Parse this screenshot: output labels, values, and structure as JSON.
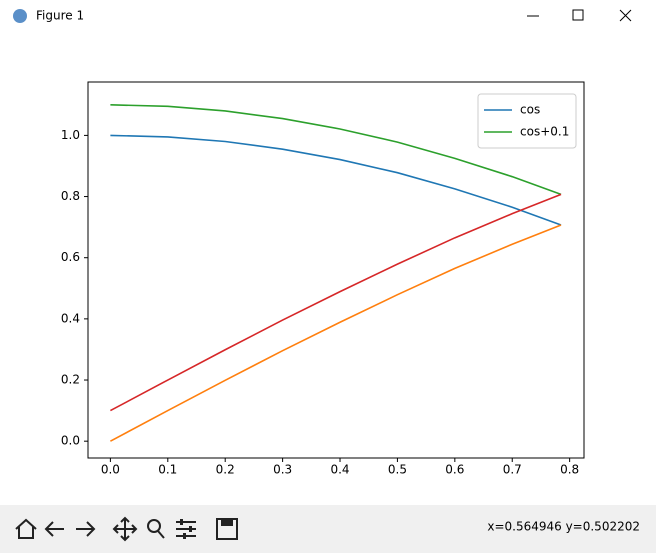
{
  "window": {
    "title": "Figure 1"
  },
  "chart_data": {
    "type": "line",
    "x": [
      0,
      0.1,
      0.2,
      0.3,
      0.4,
      0.5,
      0.6,
      0.7,
      0.785
    ],
    "series": [
      {
        "name": "cos",
        "color": "#1f77b4",
        "values": [
          1.0,
          0.995,
          0.98,
          0.955,
          0.921,
          0.878,
          0.825,
          0.765,
          0.707
        ]
      },
      {
        "name": "cos+0.1",
        "color": "#2ca02c",
        "values": [
          1.1,
          1.095,
          1.08,
          1.055,
          1.021,
          0.978,
          0.925,
          0.865,
          0.807
        ]
      },
      {
        "color": "#ff7f0e",
        "values": [
          0,
          0.1,
          0.199,
          0.296,
          0.389,
          0.479,
          0.565,
          0.644,
          0.707
        ]
      },
      {
        "color": "#d62728",
        "values": [
          0.1,
          0.2,
          0.299,
          0.396,
          0.489,
          0.579,
          0.665,
          0.744,
          0.807
        ]
      }
    ],
    "xlim": [
      -0.039,
      0.825
    ],
    "ylim": [
      -0.055,
      1.155
    ],
    "xticks": [
      {
        "value": 0,
        "label": "0.0"
      },
      0.1,
      0.2,
      0.3,
      0.4,
      0.5,
      0.6,
      0.7,
      0.8
    ],
    "yticks": [
      {
        "value": 0,
        "label": "0.0"
      },
      0.2,
      0.4,
      0.6,
      0.8,
      {
        "value": 1,
        "label": "1.0"
      }
    ],
    "legend": "upper right"
  },
  "toolbar": {
    "status": "x=0.564946 y=0.502202"
  }
}
